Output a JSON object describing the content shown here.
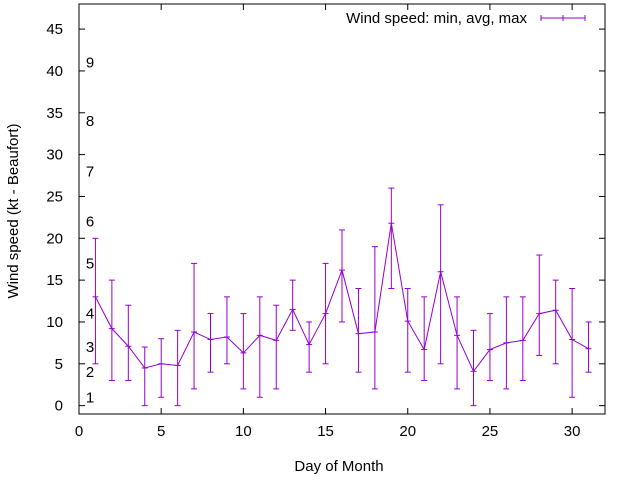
{
  "chart_data": {
    "type": "line",
    "style": "errorbars",
    "title": "",
    "xlabel": "Day of Month",
    "ylabel": "Wind speed (kt - Beaufort)",
    "xlim": [
      0,
      32
    ],
    "ylim": [
      -1,
      48
    ],
    "xticks": [
      0,
      5,
      10,
      15,
      20,
      25,
      30
    ],
    "yticks": [
      0,
      5,
      10,
      15,
      20,
      25,
      30,
      35,
      40,
      45
    ],
    "grid": false,
    "legend_position": "top-right",
    "series": [
      {
        "name": "Wind speed: min, avg, max",
        "color": "#9400d3",
        "x": [
          1,
          2,
          3,
          4,
          5,
          6,
          7,
          8,
          9,
          10,
          11,
          12,
          13,
          14,
          15,
          16,
          17,
          18,
          19,
          20,
          21,
          22,
          23,
          24,
          25,
          26,
          27,
          28,
          29,
          30,
          31
        ],
        "avg": [
          13,
          9.2,
          7.1,
          4.5,
          5,
          4.8,
          8.8,
          7.9,
          8.2,
          6.3,
          8.4,
          7.8,
          11.5,
          7.3,
          11,
          16.2,
          8.6,
          8.8,
          21.8,
          10.1,
          6.7,
          16,
          8.4,
          4.1,
          6.7,
          7.5,
          7.8,
          11,
          11.4,
          7.9,
          6.8
        ],
        "min": [
          5,
          3,
          3,
          0,
          1,
          0,
          2,
          4,
          5,
          2,
          1,
          2,
          9,
          4,
          5,
          10,
          4,
          2,
          14,
          4,
          3,
          5,
          2,
          0,
          3,
          2,
          3,
          6,
          5,
          1,
          4
        ],
        "max": [
          20,
          15,
          12,
          7,
          8,
          9,
          17,
          11,
          13,
          11,
          13,
          12,
          15,
          10,
          17,
          21,
          14,
          19,
          26,
          14,
          13,
          24,
          13,
          9,
          11,
          13,
          13,
          18,
          15,
          14,
          10
        ]
      }
    ],
    "beaufort_labels": [
      {
        "label": "1",
        "value": 1
      },
      {
        "label": "2",
        "value": 4
      },
      {
        "label": "3",
        "value": 7
      },
      {
        "label": "4",
        "value": 11
      },
      {
        "label": "5",
        "value": 17
      },
      {
        "label": "6",
        "value": 22
      },
      {
        "label": "7",
        "value": 28
      },
      {
        "label": "8",
        "value": 34
      },
      {
        "label": "9",
        "value": 41
      }
    ]
  }
}
